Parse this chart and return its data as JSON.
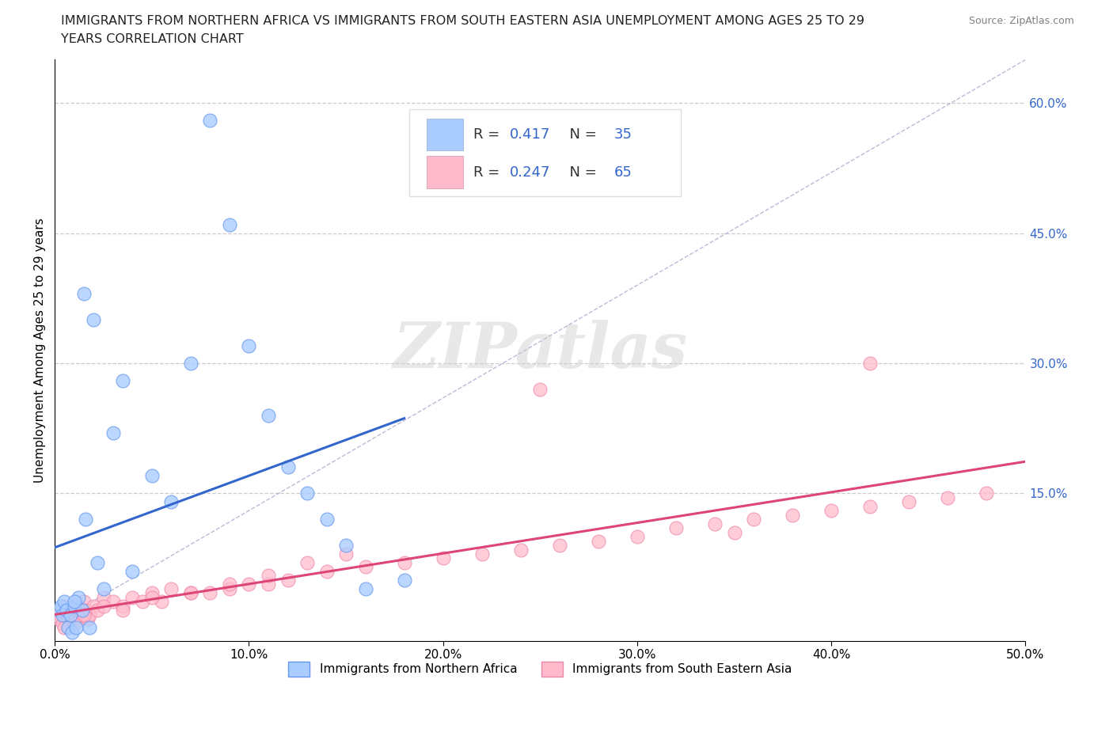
{
  "title_line1": "IMMIGRANTS FROM NORTHERN AFRICA VS IMMIGRANTS FROM SOUTH EASTERN ASIA UNEMPLOYMENT AMONG AGES 25 TO 29",
  "title_line2": "YEARS CORRELATION CHART",
  "source": "Source: ZipAtlas.com",
  "ylabel": "Unemployment Among Ages 25 to 29 years",
  "xlim": [
    0,
    50
  ],
  "ylim": [
    -2,
    65
  ],
  "xticklabels": [
    "0.0%",
    "10.0%",
    "20.0%",
    "30.0%",
    "40.0%",
    "50.0%"
  ],
  "ytick_right_labels": [
    "15.0%",
    "30.0%",
    "45.0%",
    "60.0%"
  ],
  "ytick_right_values": [
    15,
    30,
    45,
    60
  ],
  "grid_color": "#cccccc",
  "blue_face": "#aaccff",
  "blue_edge": "#6699ee",
  "pink_face": "#ffbbcc",
  "pink_edge": "#ee88aa",
  "blue_line_color": "#3366cc",
  "pink_line_color": "#dd4477",
  "ref_line_color": "#aaaacc",
  "legend_R1": "0.417",
  "legend_N1": "35",
  "legend_R2": "0.247",
  "legend_N2": "65",
  "legend_text_color": "#3366cc",
  "legend_label1": "Immigrants from Northern Africa",
  "legend_label2": "Immigrants from South Eastern Asia",
  "watermark": "ZIPatlas",
  "blue_x": [
    0.2,
    0.3,
    0.4,
    0.5,
    0.6,
    0.7,
    0.8,
    0.9,
    1.0,
    1.1,
    1.2,
    1.4,
    1.5,
    1.6,
    1.8,
    2.0,
    2.2,
    2.5,
    3.0,
    3.5,
    4.0,
    5.0,
    6.0,
    7.0,
    8.0,
    9.0,
    10.0,
    11.0,
    12.0,
    13.0,
    14.0,
    15.0,
    16.0,
    1.0,
    18.0
  ],
  "blue_y": [
    1.5,
    2.0,
    1.0,
    2.5,
    1.5,
    -0.5,
    1.0,
    -1.0,
    2.0,
    -0.5,
    3.0,
    1.5,
    38.0,
    12.0,
    -0.5,
    35.0,
    7.0,
    4.0,
    22.0,
    28.0,
    6.0,
    17.0,
    14.0,
    30.0,
    58.0,
    46.0,
    32.0,
    24.0,
    18.0,
    15.0,
    12.0,
    9.0,
    4.0,
    2.5,
    5.0
  ],
  "pink_x": [
    0.1,
    0.2,
    0.3,
    0.4,
    0.5,
    0.6,
    0.7,
    0.8,
    0.9,
    1.0,
    1.1,
    1.2,
    1.3,
    1.4,
    1.5,
    1.6,
    1.7,
    1.8,
    2.0,
    2.2,
    2.5,
    3.0,
    3.5,
    4.0,
    4.5,
    5.0,
    5.5,
    6.0,
    7.0,
    8.0,
    9.0,
    10.0,
    11.0,
    12.0,
    14.0,
    16.0,
    18.0,
    20.0,
    22.0,
    24.0,
    26.0,
    28.0,
    30.0,
    32.0,
    34.0,
    36.0,
    38.0,
    40.0,
    42.0,
    44.0,
    46.0,
    48.0,
    0.5,
    1.0,
    1.5,
    2.5,
    3.5,
    5.0,
    7.0,
    9.0,
    11.0,
    13.0,
    15.0,
    35.0,
    25.0
  ],
  "pink_y": [
    1.0,
    0.5,
    1.5,
    0.0,
    2.0,
    1.0,
    0.5,
    1.5,
    0.5,
    1.0,
    2.0,
    1.5,
    0.5,
    1.0,
    2.5,
    1.5,
    0.5,
    1.0,
    2.0,
    1.5,
    3.0,
    2.5,
    2.0,
    3.0,
    2.5,
    3.5,
    2.5,
    4.0,
    3.5,
    3.5,
    4.0,
    4.5,
    4.5,
    5.0,
    6.0,
    6.5,
    7.0,
    7.5,
    8.0,
    8.5,
    9.0,
    9.5,
    10.0,
    11.0,
    11.5,
    12.0,
    12.5,
    13.0,
    13.5,
    14.0,
    14.5,
    15.0,
    -0.5,
    0.0,
    1.0,
    2.0,
    1.5,
    3.0,
    3.5,
    4.5,
    5.5,
    7.0,
    8.0,
    10.5,
    27.0
  ],
  "pink_outlier_x": 42.0,
  "pink_outlier_y": 30.0,
  "marker_size": 150
}
